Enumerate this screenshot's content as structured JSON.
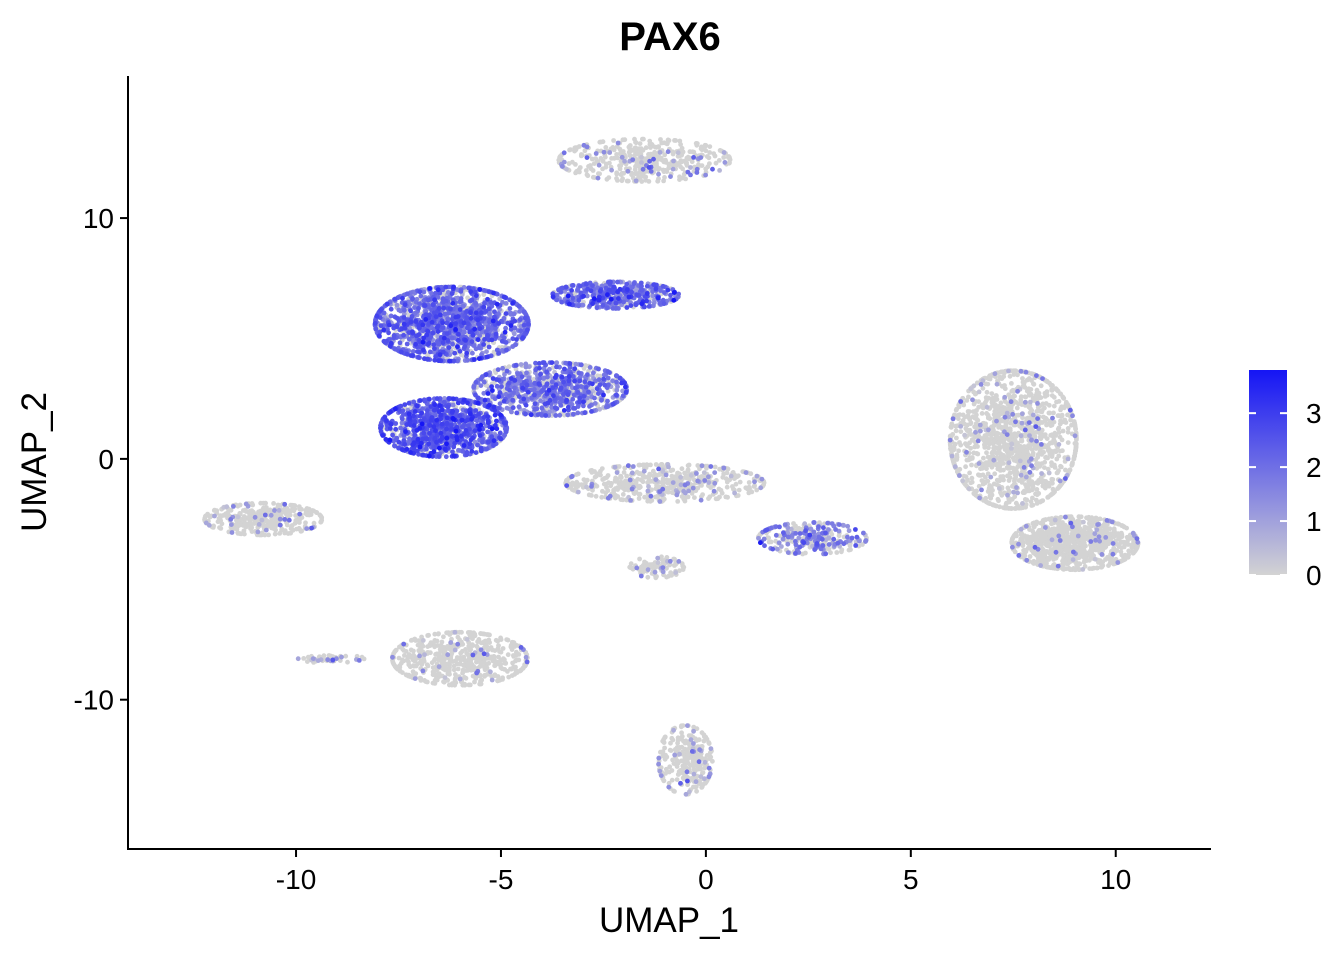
{
  "chart_data": {
    "type": "scatter",
    "title": "PAX6",
    "xlabel": "UMAP_1",
    "ylabel": "UMAP_2",
    "xlim": [
      -14.1,
      12.3
    ],
    "ylim": [
      -16.2,
      15.9
    ],
    "xticks": [
      -10,
      -5,
      0,
      5,
      10
    ],
    "xtick_labels": [
      "-10",
      "-5",
      "0",
      "5",
      "10"
    ],
    "yticks": [
      -10,
      0,
      10
    ],
    "ytick_labels": [
      "-10",
      "0",
      "10"
    ],
    "grid": false,
    "legend": {
      "placement": "right",
      "type": "colorbar",
      "range": [
        0,
        3.8
      ],
      "ticks": [
        0,
        1,
        2,
        3
      ],
      "tick_labels": [
        "0",
        "1",
        "2",
        "3"
      ],
      "low_color": "#d3d3d3",
      "high_color": "#1515f5"
    },
    "point_color_low": "#d3d3d3",
    "point_color_high": "#1515f5",
    "clusters": [
      {
        "name": "",
        "center": [
          -1.5,
          12.4
        ],
        "spread": [
          1.9,
          0.8
        ],
        "count": 420,
        "expr_fraction": 0.12,
        "expr_mean": 1.4
      },
      {
        "name": "",
        "center": [
          -6.2,
          5.6
        ],
        "spread": [
          1.7,
          1.4
        ],
        "count": 1500,
        "expr_fraction": 0.75,
        "expr_mean": 2.0
      },
      {
        "name": "",
        "center": [
          -2.2,
          6.8
        ],
        "spread": [
          1.4,
          0.5
        ],
        "count": 450,
        "expr_fraction": 0.8,
        "expr_mean": 2.0
      },
      {
        "name": "",
        "center": [
          -6.4,
          1.3
        ],
        "spread": [
          1.4,
          1.1
        ],
        "count": 1000,
        "expr_fraction": 0.85,
        "expr_mean": 2.3
      },
      {
        "name": "",
        "center": [
          -3.8,
          2.9
        ],
        "spread": [
          1.7,
          1.0
        ],
        "count": 900,
        "expr_fraction": 0.7,
        "expr_mean": 1.8
      },
      {
        "name": "",
        "center": [
          -1.0,
          -1.0
        ],
        "spread": [
          2.2,
          0.7
        ],
        "count": 500,
        "expr_fraction": 0.15,
        "expr_mean": 1.2
      },
      {
        "name": "",
        "center": [
          2.6,
          -3.3
        ],
        "spread": [
          1.2,
          0.6
        ],
        "count": 300,
        "expr_fraction": 0.55,
        "expr_mean": 1.5
      },
      {
        "name": "",
        "center": [
          7.5,
          0.8
        ],
        "spread": [
          1.4,
          2.6
        ],
        "count": 1300,
        "expr_fraction": 0.08,
        "expr_mean": 1.1
      },
      {
        "name": "",
        "center": [
          9.0,
          -3.5
        ],
        "spread": [
          1.4,
          1.0
        ],
        "count": 900,
        "expr_fraction": 0.05,
        "expr_mean": 1.2
      },
      {
        "name": "",
        "center": [
          -10.8,
          -2.5
        ],
        "spread": [
          1.3,
          0.6
        ],
        "count": 350,
        "expr_fraction": 0.08,
        "expr_mean": 1.3
      },
      {
        "name": "",
        "center": [
          -6.0,
          -8.3
        ],
        "spread": [
          1.5,
          1.0
        ],
        "count": 550,
        "expr_fraction": 0.05,
        "expr_mean": 1.1
      },
      {
        "name": "",
        "center": [
          -0.5,
          -12.5
        ],
        "spread": [
          0.6,
          1.3
        ],
        "count": 280,
        "expr_fraction": 0.12,
        "expr_mean": 1.2
      },
      {
        "name": "",
        "center": [
          -9.2,
          -8.3
        ],
        "spread": [
          0.8,
          0.15
        ],
        "count": 50,
        "expr_fraction": 0.3,
        "expr_mean": 1.0
      },
      {
        "name": "",
        "center": [
          -1.2,
          -4.5
        ],
        "spread": [
          0.6,
          0.4
        ],
        "count": 90,
        "expr_fraction": 0.1,
        "expr_mean": 1.3
      }
    ]
  }
}
